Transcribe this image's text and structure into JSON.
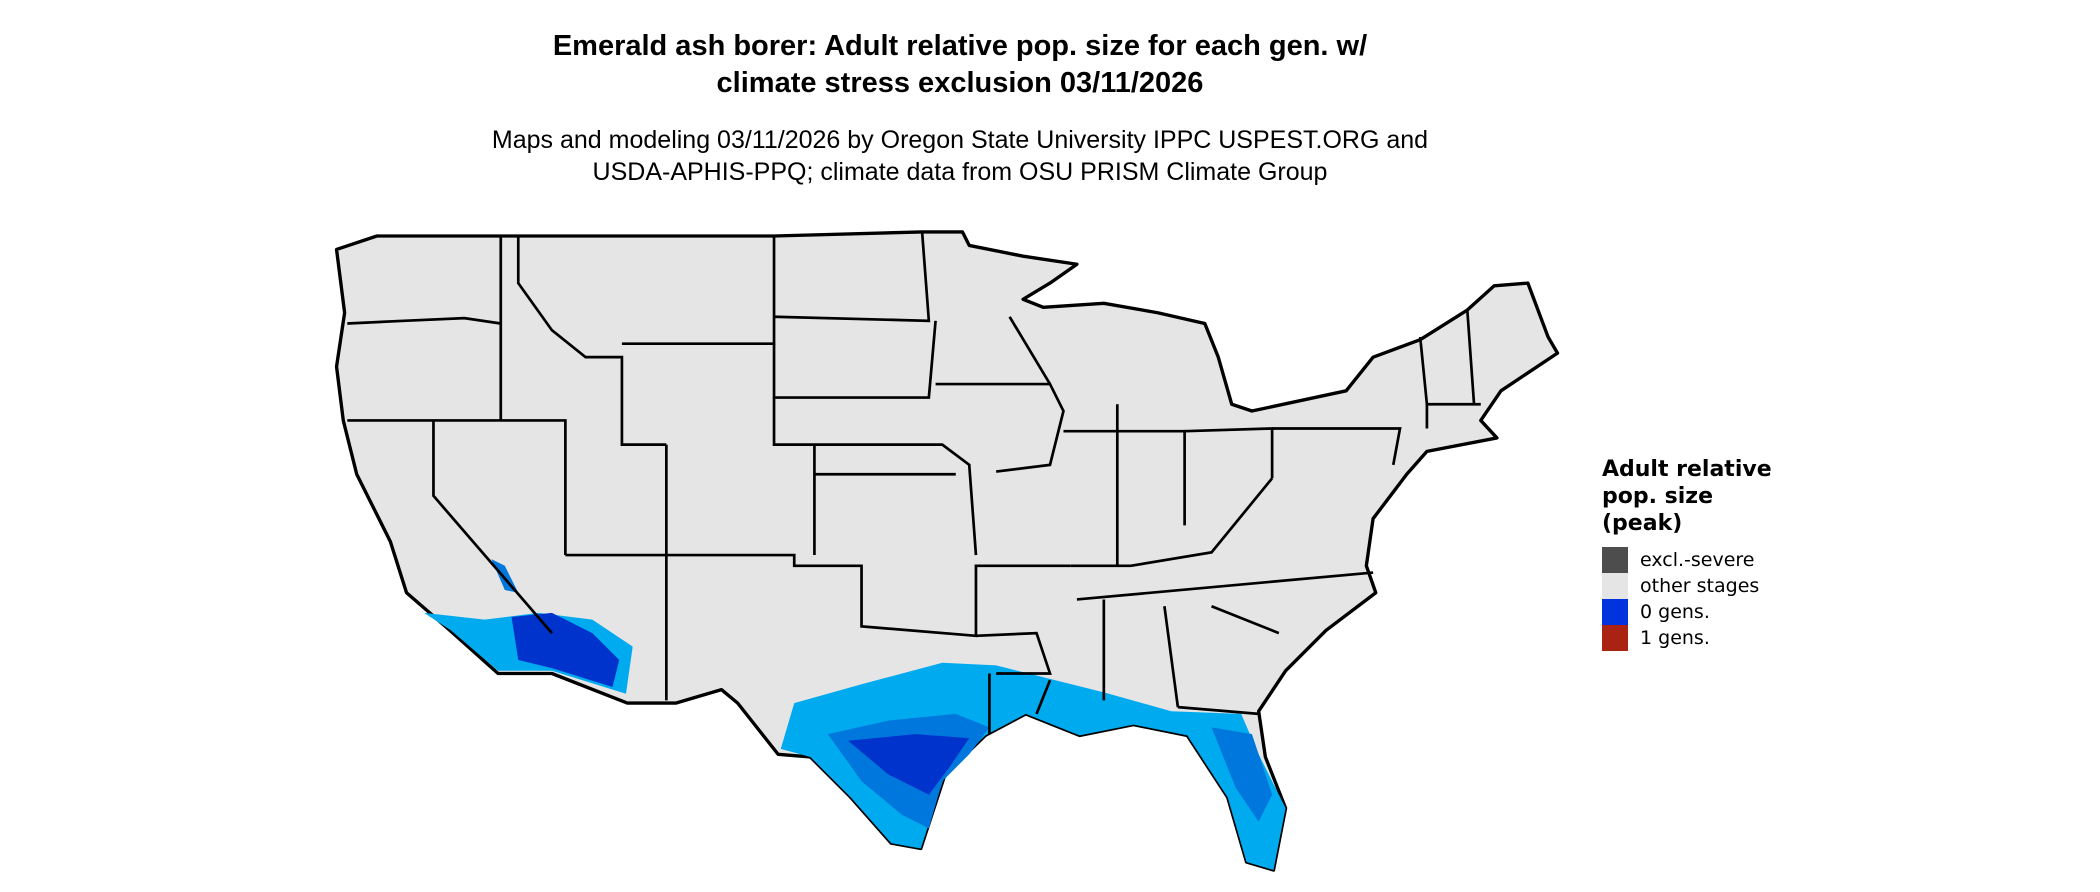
{
  "title_line1": "Emerald ash borer: Adult relative pop. size for each gen. w/",
  "title_line2": "climate stress exclusion 03/11/2026",
  "subtitle_line1": "Maps and modeling 03/11/2026 by Oregon State University IPPC USPEST.ORG and",
  "subtitle_line2": "USDA-APHIS-PPQ; climate data from OSU PRISM Climate Group",
  "legend": {
    "title_line1": "Adult relative",
    "title_line2": "pop. size",
    "title_line3": "(peak)",
    "items": [
      {
        "label": "excl.-severe",
        "color": "#4d4d4d"
      },
      {
        "label": "other stages",
        "color": "#e5e5e5"
      },
      {
        "label": "0 gens.",
        "color": "#0033dd"
      },
      {
        "label": "1 gens.",
        "color": "#aa2211"
      }
    ]
  },
  "colors": {
    "land": "#e5e5e5",
    "border": "#000000",
    "zero_gens_light": "#00aaee",
    "zero_gens_mid": "#0077dd",
    "zero_gens_dark": "#0033cc"
  }
}
